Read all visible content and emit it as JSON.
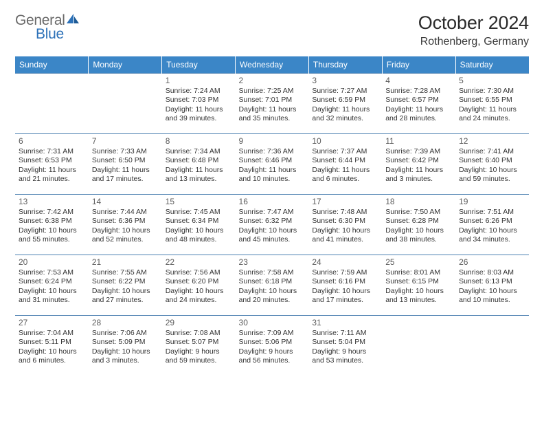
{
  "logo": {
    "text1": "General",
    "text2": "Blue",
    "color1": "#6a6a6a",
    "color2": "#2c71b8"
  },
  "title": "October 2024",
  "location": "Rothenberg, Germany",
  "header_bg": "#3b86c7",
  "header_fg": "#ffffff",
  "border_color": "#4a7fb0",
  "weekdays": [
    "Sunday",
    "Monday",
    "Tuesday",
    "Wednesday",
    "Thursday",
    "Friday",
    "Saturday"
  ],
  "weeks": [
    [
      {},
      {},
      {
        "n": "1",
        "sr": "7:24 AM",
        "ss": "7:03 PM",
        "dl": "11 hours and 39 minutes."
      },
      {
        "n": "2",
        "sr": "7:25 AM",
        "ss": "7:01 PM",
        "dl": "11 hours and 35 minutes."
      },
      {
        "n": "3",
        "sr": "7:27 AM",
        "ss": "6:59 PM",
        "dl": "11 hours and 32 minutes."
      },
      {
        "n": "4",
        "sr": "7:28 AM",
        "ss": "6:57 PM",
        "dl": "11 hours and 28 minutes."
      },
      {
        "n": "5",
        "sr": "7:30 AM",
        "ss": "6:55 PM",
        "dl": "11 hours and 24 minutes."
      }
    ],
    [
      {
        "n": "6",
        "sr": "7:31 AM",
        "ss": "6:53 PM",
        "dl": "11 hours and 21 minutes."
      },
      {
        "n": "7",
        "sr": "7:33 AM",
        "ss": "6:50 PM",
        "dl": "11 hours and 17 minutes."
      },
      {
        "n": "8",
        "sr": "7:34 AM",
        "ss": "6:48 PM",
        "dl": "11 hours and 13 minutes."
      },
      {
        "n": "9",
        "sr": "7:36 AM",
        "ss": "6:46 PM",
        "dl": "11 hours and 10 minutes."
      },
      {
        "n": "10",
        "sr": "7:37 AM",
        "ss": "6:44 PM",
        "dl": "11 hours and 6 minutes."
      },
      {
        "n": "11",
        "sr": "7:39 AM",
        "ss": "6:42 PM",
        "dl": "11 hours and 3 minutes."
      },
      {
        "n": "12",
        "sr": "7:41 AM",
        "ss": "6:40 PM",
        "dl": "10 hours and 59 minutes."
      }
    ],
    [
      {
        "n": "13",
        "sr": "7:42 AM",
        "ss": "6:38 PM",
        "dl": "10 hours and 55 minutes."
      },
      {
        "n": "14",
        "sr": "7:44 AM",
        "ss": "6:36 PM",
        "dl": "10 hours and 52 minutes."
      },
      {
        "n": "15",
        "sr": "7:45 AM",
        "ss": "6:34 PM",
        "dl": "10 hours and 48 minutes."
      },
      {
        "n": "16",
        "sr": "7:47 AM",
        "ss": "6:32 PM",
        "dl": "10 hours and 45 minutes."
      },
      {
        "n": "17",
        "sr": "7:48 AM",
        "ss": "6:30 PM",
        "dl": "10 hours and 41 minutes."
      },
      {
        "n": "18",
        "sr": "7:50 AM",
        "ss": "6:28 PM",
        "dl": "10 hours and 38 minutes."
      },
      {
        "n": "19",
        "sr": "7:51 AM",
        "ss": "6:26 PM",
        "dl": "10 hours and 34 minutes."
      }
    ],
    [
      {
        "n": "20",
        "sr": "7:53 AM",
        "ss": "6:24 PM",
        "dl": "10 hours and 31 minutes."
      },
      {
        "n": "21",
        "sr": "7:55 AM",
        "ss": "6:22 PM",
        "dl": "10 hours and 27 minutes."
      },
      {
        "n": "22",
        "sr": "7:56 AM",
        "ss": "6:20 PM",
        "dl": "10 hours and 24 minutes."
      },
      {
        "n": "23",
        "sr": "7:58 AM",
        "ss": "6:18 PM",
        "dl": "10 hours and 20 minutes."
      },
      {
        "n": "24",
        "sr": "7:59 AM",
        "ss": "6:16 PM",
        "dl": "10 hours and 17 minutes."
      },
      {
        "n": "25",
        "sr": "8:01 AM",
        "ss": "6:15 PM",
        "dl": "10 hours and 13 minutes."
      },
      {
        "n": "26",
        "sr": "8:03 AM",
        "ss": "6:13 PM",
        "dl": "10 hours and 10 minutes."
      }
    ],
    [
      {
        "n": "27",
        "sr": "7:04 AM",
        "ss": "5:11 PM",
        "dl": "10 hours and 6 minutes."
      },
      {
        "n": "28",
        "sr": "7:06 AM",
        "ss": "5:09 PM",
        "dl": "10 hours and 3 minutes."
      },
      {
        "n": "29",
        "sr": "7:08 AM",
        "ss": "5:07 PM",
        "dl": "9 hours and 59 minutes."
      },
      {
        "n": "30",
        "sr": "7:09 AM",
        "ss": "5:06 PM",
        "dl": "9 hours and 56 minutes."
      },
      {
        "n": "31",
        "sr": "7:11 AM",
        "ss": "5:04 PM",
        "dl": "9 hours and 53 minutes."
      },
      {},
      {}
    ]
  ],
  "labels": {
    "sunrise": "Sunrise:",
    "sunset": "Sunset:",
    "daylight": "Daylight:"
  }
}
